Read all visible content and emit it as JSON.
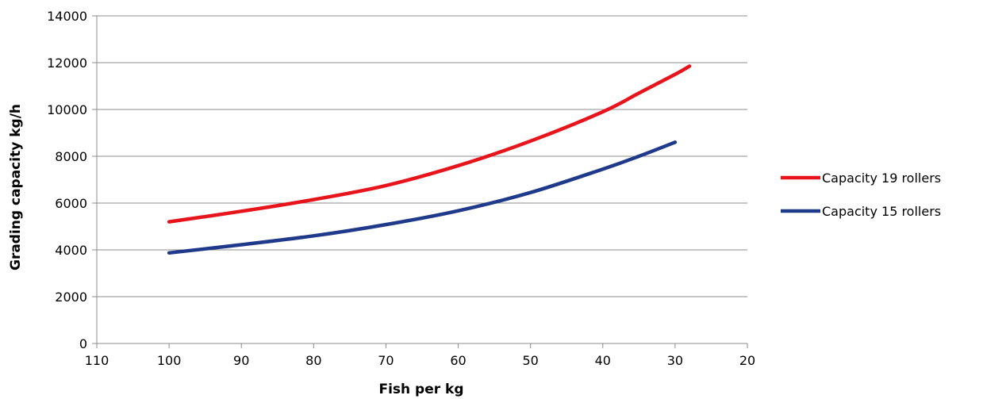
{
  "chart_data": {
    "type": "line",
    "title": "",
    "xlabel": "Fish per kg",
    "ylabel": "Grading capacity kg/h",
    "xlim": [
      110,
      20
    ],
    "x_reversed": true,
    "ylim": [
      0,
      14000
    ],
    "x_ticks": [
      110,
      100,
      90,
      80,
      70,
      60,
      50,
      40,
      30,
      20
    ],
    "y_ticks": [
      0,
      2000,
      4000,
      6000,
      8000,
      10000,
      12000,
      14000
    ],
    "grid": "horizontal",
    "legend_position": "right",
    "series": [
      {
        "name": "Capacity 19 rollers",
        "color": "#e8141c",
        "x": [
          100,
          90,
          80,
          70,
          60,
          50,
          40,
          35,
          30,
          28
        ],
        "y": [
          5200,
          5650,
          6150,
          6750,
          7600,
          8650,
          9900,
          10700,
          11500,
          11850
        ]
      },
      {
        "name": "Capacity 15 rollers",
        "color": "#1f3a8a",
        "x": [
          100,
          90,
          80,
          70,
          60,
          50,
          40,
          35,
          30
        ],
        "y": [
          3870,
          4220,
          4600,
          5080,
          5670,
          6450,
          7450,
          8000,
          8600
        ]
      }
    ]
  }
}
